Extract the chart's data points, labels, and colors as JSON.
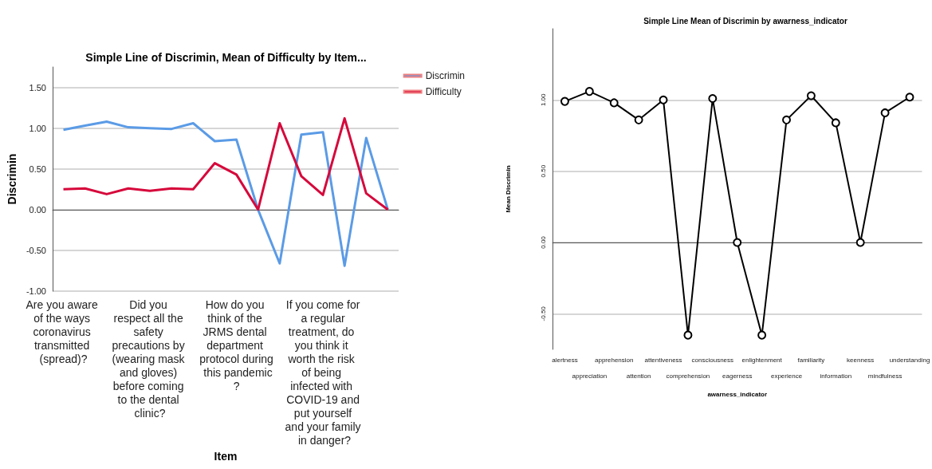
{
  "chart_data": [
    {
      "type": "line",
      "title": "Simple Line of Discrimin, Mean of Difficulty by Item...",
      "xlabel": "Item",
      "ylabel": "Discrimin",
      "categories": [
        "Are you aware of the ways coronavirus transmitted (spread)?",
        null,
        null,
        null,
        "Did you respect all the safety precautions by (wearing mask and gloves) before coming to the dental clinic?",
        null,
        null,
        null,
        "How do you think of the JRMS dental department protocol during this pandemic?",
        null,
        null,
        null,
        "If you come for a regular treatment, do you think it worth the risk of being infected with COVID-19 and put yourself and your family in danger?",
        null,
        null,
        null
      ],
      "series": [
        {
          "name": "Discrimin",
          "color": "#5b9be6",
          "values": [
            0.98,
            1.03,
            1.08,
            1.01,
            1.0,
            0.99,
            1.06,
            0.84,
            0.86,
            0.0,
            -0.66,
            0.92,
            0.95,
            -0.69,
            0.88,
            0.0
          ]
        },
        {
          "name": "Difficulty",
          "color": "#d6083b",
          "values": [
            0.25,
            0.26,
            0.19,
            0.26,
            0.23,
            0.26,
            0.25,
            0.57,
            0.43,
            0.0,
            1.06,
            0.41,
            0.18,
            1.12,
            0.2,
            0.0
          ]
        }
      ],
      "ylim": [
        -1.0,
        1.75
      ],
      "yticks": [
        {
          "value": -1,
          "label": "-1.00"
        },
        {
          "value": -0.5,
          "label": "-0.50"
        },
        {
          "value": 0,
          "label": "0.00"
        },
        {
          "value": 0.5,
          "label": "0.50"
        },
        {
          "value": 1,
          "label": "1.00"
        },
        {
          "value": 1.5,
          "label": "1.50"
        }
      ],
      "grid": "y",
      "legend": "top right",
      "marker": "none"
    },
    {
      "type": "line",
      "title": "Simple Line Mean of Discrimin by awarness_indicator",
      "xlabel": "awarness_indicator",
      "ylabel": "Mean Discrimin",
      "categories": [
        "alertness",
        "appreciation",
        "apprehension",
        "attention",
        "attentiveness",
        "comprehension",
        "consciousness",
        "eagerness",
        "enlightenment",
        "experience",
        "familiarity",
        "information",
        "keenness",
        "mindfulness",
        "understanding"
      ],
      "series": [
        {
          "color": "#000000",
          "values": [
            0.99,
            1.06,
            0.98,
            0.86,
            1.0,
            -0.65,
            1.01,
            0.0,
            -0.65,
            0.86,
            1.03,
            0.84,
            0.0,
            0.91,
            1.02
          ]
        }
      ],
      "ylim": [
        -0.75,
        1.5
      ],
      "yticks": [
        {
          "value": -0.5,
          "label": "-0.50"
        },
        {
          "value": 0,
          "label": "0.00"
        },
        {
          "value": 0.5,
          "label": "0.50"
        },
        {
          "value": 1,
          "label": "1.00"
        }
      ],
      "grid": "y",
      "legend": false,
      "marker": "circle"
    }
  ]
}
